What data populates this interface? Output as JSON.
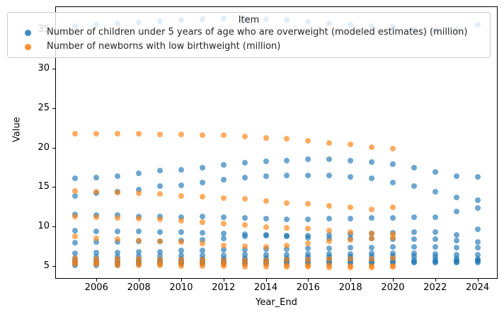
{
  "axes": {
    "xlabel": "Year_End",
    "ylabel": "Value"
  },
  "legend": {
    "title": "Item",
    "items": [
      {
        "label": "Number of children under 5 years of age who are overweight (modeled estimates) (million)",
        "color": "#1f77b4"
      },
      {
        "label": "Number of newborns with low birthweight (million)",
        "color": "#ff7f0e"
      }
    ]
  },
  "chart_data": {
    "type": "scatter",
    "title": "",
    "xlabel": "Year_End",
    "ylabel": "Value",
    "xlim": [
      2004.05,
      2024.95
    ],
    "ylim": [
      3.35,
      37.95
    ],
    "x_ticks": [
      2006,
      2008,
      2010,
      2012,
      2014,
      2016,
      2018,
      2020,
      2022,
      2024
    ],
    "y_ticks": [
      5,
      10,
      15,
      20,
      25,
      30,
      35
    ],
    "grid": false,
    "legend_title": "Item",
    "legend_position": "upper left",
    "marker_alpha": 0.65,
    "series": [
      {
        "name": "Number of children under 5 years of age who are overweight (modeled estimates) (million)",
        "color": "#1f77b4",
        "years": [
          2005,
          2006,
          2007,
          2008,
          2009,
          2010,
          2011,
          2012,
          2013,
          2014,
          2015,
          2016,
          2017,
          2018,
          2019,
          2020,
          2021,
          2022,
          2023,
          2024
        ],
        "groups": [
          [
            35.4,
            35.6,
            35.8,
            35.9,
            36.1,
            36.2,
            36.3,
            36.4,
            36.4,
            36.3,
            36.2,
            36.0,
            35.8,
            35.6,
            35.4,
            35.3,
            35.0,
            34.9,
            35.0,
            35.6
          ],
          [
            16.1,
            16.2,
            16.4,
            16.7,
            17.1,
            17.2,
            17.5,
            17.8,
            18.1,
            18.3,
            18.4,
            18.5,
            18.5,
            18.4,
            18.2,
            17.9,
            17.5,
            16.9,
            16.4,
            16.3
          ],
          [
            13.9,
            14.2,
            14.4,
            14.7,
            15.1,
            15.2,
            15.6,
            15.9,
            16.2,
            16.4,
            16.5,
            16.5,
            16.5,
            16.3,
            16.1,
            15.6,
            15.1,
            14.4,
            13.7,
            13.3
          ],
          [
            11.5,
            11.4,
            11.4,
            11.3,
            11.3,
            11.2,
            11.3,
            11.2,
            11.1,
            11.0,
            10.9,
            10.9,
            11.0,
            11.0,
            11.1,
            11.1,
            11.2,
            11.2,
            11.9,
            12.3
          ],
          [
            9.5,
            9.4,
            9.4,
            9.4,
            9.3,
            9.3,
            9.2,
            9.1,
            9.0,
            8.9,
            8.8,
            8.8,
            8.9,
            9.0,
            9.1,
            9.2,
            9.3,
            9.3,
            8.9,
            9.6
          ],
          [
            7.9,
            8.0,
            8.0,
            8.1,
            8.1,
            8.2,
            8.3,
            8.5,
            8.7,
            8.8,
            8.7,
            8.6,
            8.5,
            8.5,
            8.5,
            8.4,
            8.4,
            8.4,
            8.2,
            8.0
          ],
          [
            6.6,
            6.7,
            6.7,
            6.8,
            6.8,
            6.9,
            6.9,
            7.0,
            7.0,
            7.1,
            7.1,
            7.2,
            7.2,
            7.3,
            7.3,
            7.4,
            7.4,
            7.4,
            7.3,
            7.3
          ],
          [
            6.0,
            6.1,
            6.1,
            6.2,
            6.2,
            6.3,
            6.3,
            6.3,
            6.4,
            6.4,
            6.4,
            6.5,
            6.5,
            6.5,
            6.6,
            6.6,
            6.6,
            6.5,
            6.4,
            6.4
          ],
          [
            5.7,
            5.7,
            5.8,
            5.8,
            5.8,
            5.9,
            5.9,
            5.9,
            6.0,
            6.0,
            6.0,
            6.1,
            6.1,
            6.1,
            6.2,
            6.2,
            6.2,
            6.1,
            6.0,
            5.9
          ],
          [
            5.5,
            5.5,
            5.5,
            5.6,
            5.6,
            5.6,
            5.6,
            5.7,
            5.7,
            5.7,
            5.7,
            5.8,
            5.8,
            5.8,
            5.8,
            5.8,
            5.8,
            5.8,
            5.7,
            5.7
          ],
          [
            5.3,
            5.3,
            5.3,
            5.3,
            5.4,
            5.4,
            5.4,
            5.4,
            5.4,
            5.4,
            5.5,
            5.5,
            5.5,
            5.5,
            5.5,
            5.5,
            5.5,
            5.5,
            5.5,
            5.6
          ],
          [
            5.1,
            5.1,
            5.1,
            5.2,
            5.2,
            5.2,
            5.2,
            5.2,
            5.2,
            5.2,
            5.3,
            5.3,
            5.3,
            5.3,
            5.3,
            5.3,
            5.4,
            5.4,
            5.4,
            5.4
          ]
        ]
      },
      {
        "name": "Number of newborns with low birthweight (million)",
        "color": "#ff7f0e",
        "years": [
          2005,
          2006,
          2007,
          2008,
          2009,
          2010,
          2011,
          2012,
          2013,
          2014,
          2015,
          2016,
          2017,
          2018,
          2019,
          2020
        ],
        "groups": [
          [
            21.8,
            21.8,
            21.8,
            21.8,
            21.7,
            21.7,
            21.6,
            21.6,
            21.4,
            21.2,
            21.1,
            20.9,
            20.6,
            20.4,
            20.1,
            19.9
          ],
          [
            14.5,
            14.4,
            14.3,
            14.2,
            14.1,
            13.9,
            13.8,
            13.6,
            13.5,
            13.2,
            13.0,
            12.9,
            12.6,
            12.4,
            12.2,
            12.4
          ],
          [
            11.3,
            11.2,
            11.1,
            11.0,
            10.9,
            10.7,
            10.5,
            10.4,
            10.2,
            9.9,
            9.8,
            9.7,
            9.5,
            9.3,
            9.1,
            9.0
          ],
          [
            8.7,
            8.5,
            8.4,
            8.2,
            8.1,
            8.0,
            7.8,
            7.6,
            7.5,
            7.4,
            7.6,
            7.8,
            8.1,
            8.3,
            8.5,
            8.6
          ],
          [
            6.0,
            5.9,
            5.9,
            5.9,
            5.8,
            5.8,
            5.8,
            5.7,
            5.7,
            5.7,
            5.8,
            5.8,
            5.9,
            5.9,
            5.9,
            6.0
          ],
          [
            5.5,
            5.4,
            5.4,
            5.4,
            5.3,
            5.3,
            5.3,
            5.2,
            5.2,
            5.2,
            5.1,
            5.1,
            5.1,
            5.0,
            5.0,
            5.0
          ],
          [
            5.2,
            5.2,
            5.1,
            5.1,
            5.1,
            5.0,
            5.0,
            5.0,
            4.9,
            4.9,
            4.9,
            4.9,
            4.8,
            4.8,
            4.8,
            4.9
          ]
        ]
      }
    ]
  }
}
